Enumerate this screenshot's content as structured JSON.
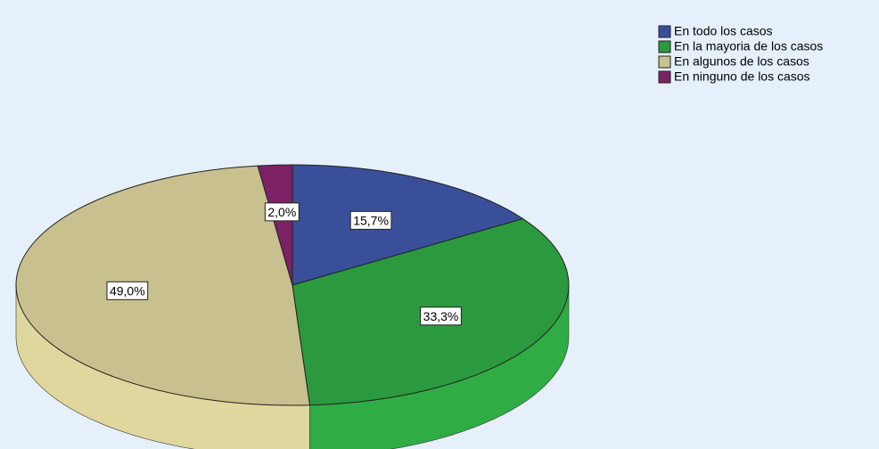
{
  "chart_data": {
    "type": "pie",
    "categories": [
      "En todo los casos",
      "En la mayoria de los casos",
      "En algunos de los casos",
      "En ninguno de los casos"
    ],
    "values": [
      15.7,
      33.3,
      49.0,
      2.0
    ],
    "value_labels": [
      "15,7%",
      "33,3%",
      "49,0%",
      "2,0%"
    ],
    "colors": [
      "#3a4f9a",
      "#2b9a3e",
      "#c8c08e",
      "#7d2165"
    ],
    "legend": "top-right"
  }
}
